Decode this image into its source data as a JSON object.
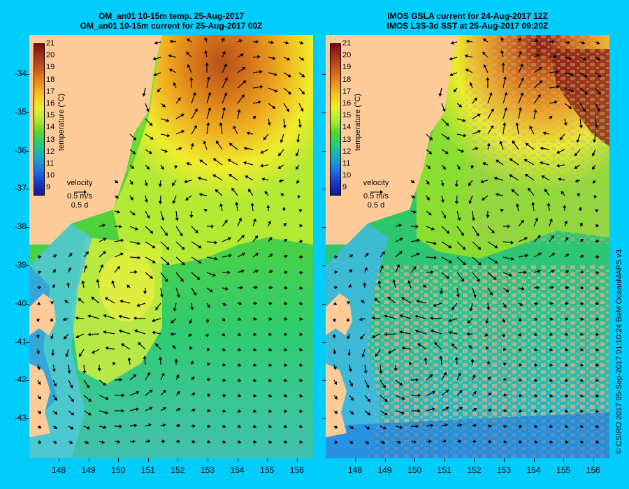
{
  "left_panel": {
    "title_line1": "OM_an01 10-15m temp. 25-Aug-2017",
    "title_line2": "OM_an01 10-15m current for 25-Aug-2017 00Z"
  },
  "right_panel": {
    "title_line1": "IMOS GSLA current for 24-Aug-2017 12Z",
    "title_line2": "IMOS L3S-3d SST at 25-Aug-2017 09:20Z"
  },
  "colorbar": {
    "title": "temperature (°C)",
    "ticks": [
      "21",
      "20",
      "19",
      "18",
      "17",
      "16",
      "15",
      "14",
      "13",
      "12",
      "11",
      "10",
      "9"
    ],
    "colors": [
      "#7a0a0a",
      "#a8341c",
      "#cc5a14",
      "#e98c1a",
      "#f7c21e",
      "#f0ee2a",
      "#b4ea34",
      "#5cd42a",
      "#1ccf7a",
      "#1aa8c8",
      "#1a78e6",
      "#1a38d0",
      "#1a1494"
    ]
  },
  "velocity_key": {
    "label": "velocity",
    "speed": "0.5 m/s",
    "time": "0.5 d"
  },
  "axes": {
    "y_ticks": [
      "-34",
      "-35",
      "-36",
      "-37",
      "-38",
      "-39",
      "-40",
      "-41",
      "-42",
      "-43"
    ],
    "x_ticks": [
      "148",
      "149",
      "150",
      "151",
      "152",
      "153",
      "154",
      "155",
      "156"
    ]
  },
  "credit": "© CSIRO 2017  05-Sep-2017 01:10:24 BoM OceanMAPS v3"
}
